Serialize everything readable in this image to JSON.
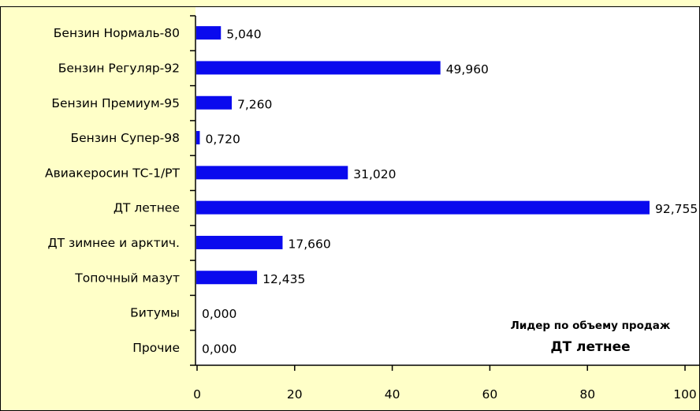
{
  "chart_data": {
    "type": "bar",
    "orientation": "horizontal",
    "title": "",
    "xlabel": "",
    "ylabel": "",
    "categories": [
      "Бензин Нормаль-80",
      "Бензин Регуляр-92",
      "Бензин Премиум-95",
      "Бензин Супер-98",
      "Авиакеросин ТС-1/РТ",
      "ДТ летнее",
      "ДТ зимнее и арктич.",
      "Топочный мазут",
      "Битумы",
      "Прочие"
    ],
    "values": [
      5.04,
      49.96,
      7.26,
      0.72,
      31.02,
      92.755,
      17.66,
      12.435,
      0.0,
      0.0
    ],
    "value_labels": [
      "5,040",
      "49,960",
      "7,260",
      "0,720",
      "31,020",
      "92,755",
      "17,660",
      "12,435",
      "0,000",
      "0,000"
    ],
    "xlim": [
      0,
      100
    ],
    "x_ticks": [
      "0",
      "20",
      "40",
      "60",
      "80",
      "100"
    ],
    "grid": false,
    "legend": "none",
    "colors": {
      "bar": "#0a0aee",
      "plot_background": "#ffffff",
      "chart_background": "#ffffc8",
      "border": "#000000"
    }
  },
  "annotation": {
    "title": "Лидер по объему продаж",
    "value": "ДТ летнее"
  }
}
